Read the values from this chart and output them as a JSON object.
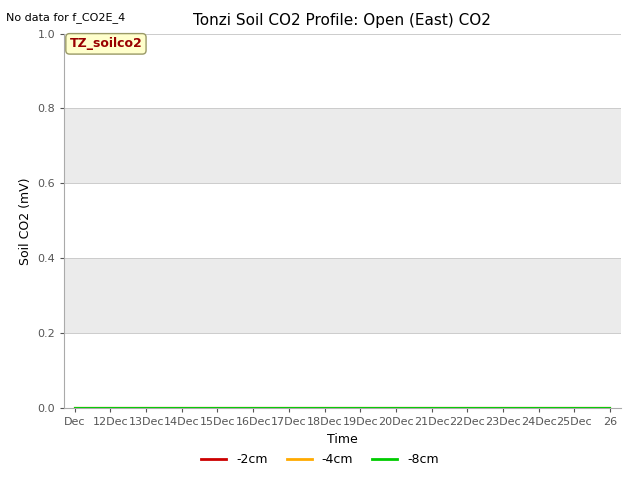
{
  "title": "Tonzi Soil CO2 Profile: Open (East) CO2",
  "no_data_text": "No data for f_CO2E_4",
  "ylabel": "Soil CO2 (mV)",
  "xlabel": "Time",
  "ylim": [
    0.0,
    1.0
  ],
  "yticks": [
    0.0,
    0.2,
    0.4,
    0.6,
    0.8,
    1.0
  ],
  "xtick_labels": [
    "Dec",
    "12Dec",
    "13Dec",
    "14Dec",
    "15Dec",
    "16Dec",
    "17Dec",
    "18Dec",
    "19Dec",
    "20Dec",
    "21Dec",
    "22Dec",
    "23Dec",
    "24Dec",
    "25Dec",
    "26"
  ],
  "x_values": [
    0,
    1,
    2,
    3,
    4,
    5,
    6,
    7,
    8,
    9,
    10,
    11,
    12,
    13,
    14,
    15
  ],
  "figure_bg_color": "#ffffff",
  "plot_bg_color": "#ffffff",
  "band_color_dark": "#e8e8e8",
  "band_color_light": "#f0f0f0",
  "grid_color": "#d8d8d8",
  "legend_label": "TZ_soilco2",
  "legend_bg": "#ffffcc",
  "legend_text_color": "#990000",
  "legend_border_color": "#999966",
  "series": [
    {
      "label": "-2cm",
      "color": "#cc0000",
      "y": [
        0,
        0,
        0,
        0,
        0,
        0,
        0,
        0,
        0,
        0,
        0,
        0,
        0,
        0,
        0,
        0
      ]
    },
    {
      "label": "-4cm",
      "color": "#ffaa00",
      "y": [
        0,
        0,
        0,
        0,
        0,
        0,
        0,
        0,
        0,
        0,
        0,
        0,
        0,
        0,
        0,
        0
      ]
    },
    {
      "label": "-8cm",
      "color": "#00cc00",
      "y": [
        0,
        0,
        0,
        0,
        0,
        0,
        0,
        0,
        0,
        0,
        0,
        0,
        0,
        0,
        0,
        0
      ]
    }
  ],
  "title_fontsize": 11,
  "axis_fontsize": 9,
  "tick_fontsize": 8,
  "legend_fontsize": 8,
  "no_data_fontsize": 8
}
